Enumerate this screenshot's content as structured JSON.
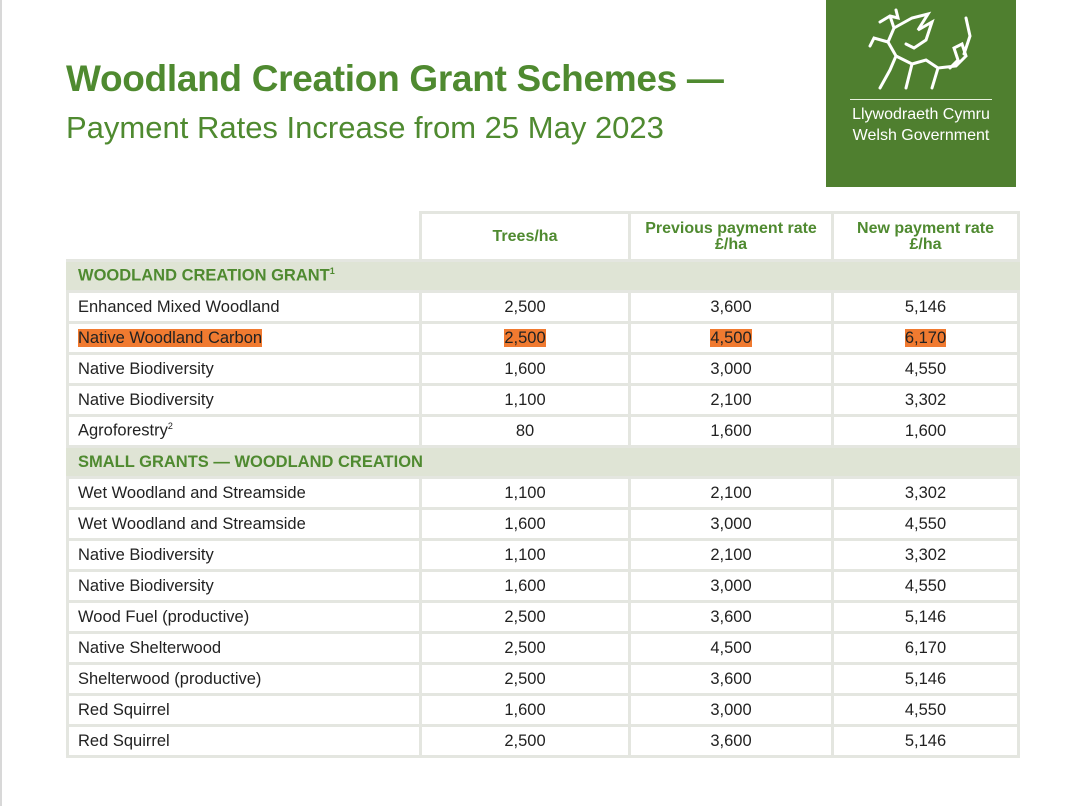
{
  "title": "Woodland Creation Grant Schemes —",
  "subtitle": "Payment Rates Increase from 25 May 2023",
  "logo": {
    "line1": "Llywodraeth Cymru",
    "line2": "Welsh Government",
    "color": "#4f7f2f",
    "icon": "welsh-dragon"
  },
  "highlight_color": "#f07a30",
  "table": {
    "headers": [
      "Trees/ha",
      "Previous payment rate £/ha",
      "New payment rate £/ha"
    ],
    "sections": [
      {
        "title": "WOODLAND CREATION GRANT",
        "footnote": "1",
        "rows": [
          {
            "name": "Enhanced Mixed Woodland",
            "trees": "2,500",
            "prev": "3,600",
            "new": "5,146"
          },
          {
            "name": "Native Woodland Carbon",
            "trees": "2,500",
            "prev": "4,500",
            "new": "6,170",
            "highlighted": true
          },
          {
            "name": "Native Biodiversity",
            "trees": "1,600",
            "prev": "3,000",
            "new": "4,550"
          },
          {
            "name": "Native Biodiversity",
            "trees": "1,100",
            "prev": "2,100",
            "new": "3,302"
          },
          {
            "name": "Agroforestry",
            "footnote": "2",
            "trees": "80",
            "prev": "1,600",
            "new": "1,600"
          }
        ]
      },
      {
        "title": "SMALL GRANTS — WOODLAND CREATION",
        "rows": [
          {
            "name": "Wet Woodland and Streamside",
            "trees": "1,100",
            "prev": "2,100",
            "new": "3,302"
          },
          {
            "name": "Wet Woodland and Streamside",
            "trees": "1,600",
            "prev": "3,000",
            "new": "4,550"
          },
          {
            "name": "Native Biodiversity",
            "trees": "1,100",
            "prev": "2,100",
            "new": "3,302"
          },
          {
            "name": "Native Biodiversity",
            "trees": "1,600",
            "prev": "3,000",
            "new": "4,550"
          },
          {
            "name": "Wood Fuel (productive)",
            "trees": "2,500",
            "prev": "3,600",
            "new": "5,146"
          },
          {
            "name": "Native Shelterwood",
            "trees": "2,500",
            "prev": "4,500",
            "new": "6,170"
          },
          {
            "name": "Shelterwood (productive)",
            "trees": "2,500",
            "prev": "3,600",
            "new": "5,146"
          },
          {
            "name": "Red Squirrel",
            "trees": "1,600",
            "prev": "3,000",
            "new": "4,550"
          },
          {
            "name": "Red Squirrel",
            "trees": "2,500",
            "prev": "3,600",
            "new": "5,146"
          }
        ]
      }
    ]
  }
}
